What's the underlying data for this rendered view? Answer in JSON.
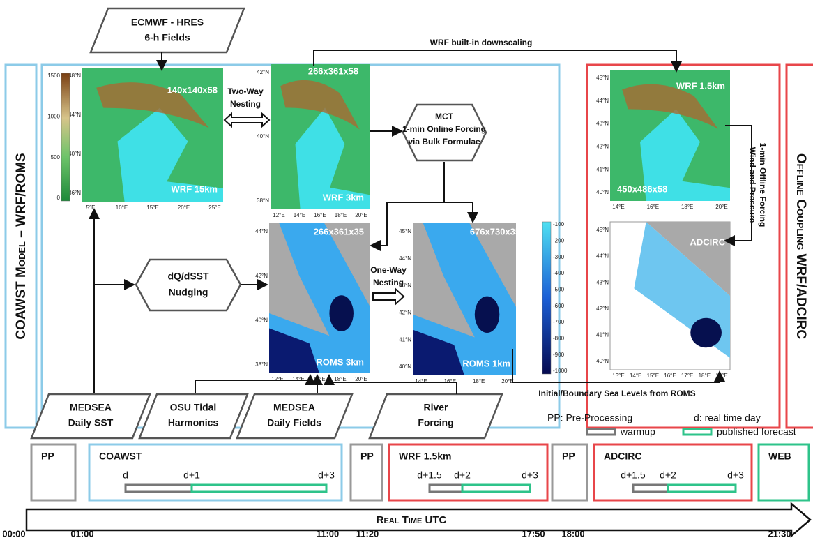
{
  "inputs": {
    "ecmwf": [
      "ECMWF - HRES",
      "6-h Fields"
    ],
    "medsea_sst": [
      "MEDSEA",
      "Daily SST"
    ],
    "osu": [
      "OSU Tidal",
      "Harmonics"
    ],
    "medsea_fields": [
      "MEDSEA",
      "Daily Fields"
    ],
    "river": [
      "River",
      "Forcing"
    ]
  },
  "processes": {
    "two_way": [
      "Two-Way",
      "Nesting"
    ],
    "one_way": [
      "One-Way",
      "Nesting"
    ],
    "mct": [
      "MCT",
      "1-min Online Forcing",
      "via Bulk Formulae"
    ],
    "nudging": [
      "dQ/dSST",
      "Nudging"
    ]
  },
  "connectors": {
    "downscaling": "WRF built-in downscaling",
    "sea_levels": "Initial/Boundary Sea Levels from ROMS",
    "offline_forcing": [
      "1-min Offline Forcing",
      "Wind and Pressure"
    ]
  },
  "groups": {
    "coawst": "COAWST Model – WRF/ROMS",
    "offline": "Offline Coupling WRF/ADCIRC"
  },
  "maps": [
    {
      "name": "WRF 15km",
      "grid": "140x140x58",
      "lat": [
        "48°N",
        "44°N",
        "40°N",
        "36°N"
      ],
      "lon": [
        "5°E",
        "10°E",
        "15°E",
        "20°E",
        "25°E"
      ],
      "colorbar": [
        "1500",
        "1000",
        "500",
        "0"
      ]
    },
    {
      "name": "WRF 3km",
      "grid": "266x361x58",
      "lat": [
        "42°N",
        "40°N",
        "38°N"
      ],
      "lon": [
        "12°E",
        "14°E",
        "16°E",
        "18°E",
        "20°E"
      ]
    },
    {
      "name": "ROMS 3km",
      "grid": "266x361x35",
      "lat": [
        "44°N",
        "42°N",
        "40°N",
        "38°N"
      ],
      "lon": [
        "12°E",
        "14°E",
        "16°E",
        "18°E",
        "20°E"
      ]
    },
    {
      "name": "ROMS 1km",
      "grid": "676x730x35",
      "lat": [
        "45°N",
        "44°N",
        "43°N",
        "42°N",
        "41°N",
        "40°N"
      ],
      "lon": [
        "14°E",
        "16°E",
        "18°E",
        "20°E"
      ],
      "colorbar": [
        "-100",
        "-200",
        "-300",
        "-400",
        "-500",
        "-600",
        "-700",
        "-800",
        "-900",
        "-1000"
      ]
    },
    {
      "name": "WRF 1.5km",
      "grid": "450x486x58",
      "lat": [
        "45°N",
        "44°N",
        "43°N",
        "42°N",
        "41°N",
        "40°N"
      ],
      "lon": [
        "14°E",
        "16°E",
        "18°E",
        "20°E"
      ]
    },
    {
      "name": "ADCIRC",
      "lat": [
        "45°N",
        "44°N",
        "43°N",
        "42°N",
        "41°N",
        "40°N"
      ],
      "lon": [
        "13°E",
        "14°E",
        "15°E",
        "16°E",
        "17°E",
        "18°E",
        "19°E"
      ]
    }
  ],
  "timeline": {
    "legend": {
      "pp": "PP: Pre-Processing",
      "d": "d: real time day",
      "warmup": "warmup",
      "published": "published forecast"
    },
    "blocks": [
      {
        "label": "PP"
      },
      {
        "label": "COAWST",
        "marks": [
          "d",
          "d+1",
          "d+3"
        ]
      },
      {
        "label": "PP"
      },
      {
        "label": "WRF 1.5km",
        "marks": [
          "d+1.5",
          "d+2",
          "d+3"
        ]
      },
      {
        "label": "PP"
      },
      {
        "label": "ADCIRC",
        "marks": [
          "d+1.5",
          "d+2",
          "d+3"
        ]
      },
      {
        "label": "WEB"
      }
    ],
    "axis_title": "Real Time UTC",
    "times": [
      "00:00",
      "01:00",
      "11:00",
      "11:20",
      "17:50",
      "18:00",
      "21:30"
    ]
  }
}
